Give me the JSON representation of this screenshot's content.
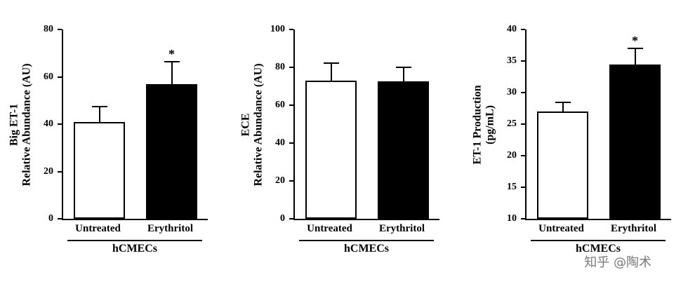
{
  "watermark": {
    "text": "知乎 @陶术"
  },
  "chart_data": [
    {
      "type": "bar",
      "title": "",
      "ylabel": "Big ET-1 Relative Abundance (AU)",
      "ylabel_lines": [
        "Big ET-1",
        "Relative Abundance (AU)"
      ],
      "ylim": [
        0,
        80
      ],
      "yticks": [
        0,
        20,
        40,
        60,
        80
      ],
      "categories": [
        "Untreated",
        "Erythritol"
      ],
      "values": [
        41,
        57
      ],
      "errors": [
        6,
        9
      ],
      "significance": [
        "",
        "*"
      ],
      "bar_fills": [
        "#ffffff",
        "#000000"
      ],
      "group_label": "hCMECs",
      "grid": false,
      "legend": false
    },
    {
      "type": "bar",
      "title": "",
      "ylabel": "ECE Relative Abundance (AU)",
      "ylabel_lines": [
        "ECE",
        "Relative Abundance (AU)"
      ],
      "ylim": [
        0,
        100
      ],
      "yticks": [
        0,
        20,
        40,
        60,
        80,
        100
      ],
      "categories": [
        "Untreated",
        "Erythritol"
      ],
      "values": [
        73,
        72.5
      ],
      "errors": [
        9,
        7
      ],
      "significance": [
        "",
        ""
      ],
      "bar_fills": [
        "#ffffff",
        "#000000"
      ],
      "group_label": "hCMECs",
      "grid": false,
      "legend": false
    },
    {
      "type": "bar",
      "title": "",
      "ylabel": "ET-1 Production (pg/mL)",
      "ylabel_lines": [
        "ET-1 Production",
        "(pg/mL)"
      ],
      "ylim": [
        10,
        40
      ],
      "yticks": [
        10,
        15,
        20,
        25,
        30,
        35,
        40
      ],
      "categories": [
        "Untreated",
        "Erythritol"
      ],
      "values": [
        27,
        34.5
      ],
      "errors": [
        1.3,
        2.4
      ],
      "significance": [
        "",
        "*"
      ],
      "bar_fills": [
        "#ffffff",
        "#000000"
      ],
      "group_label": "hCMECs",
      "grid": false,
      "legend": false
    }
  ]
}
